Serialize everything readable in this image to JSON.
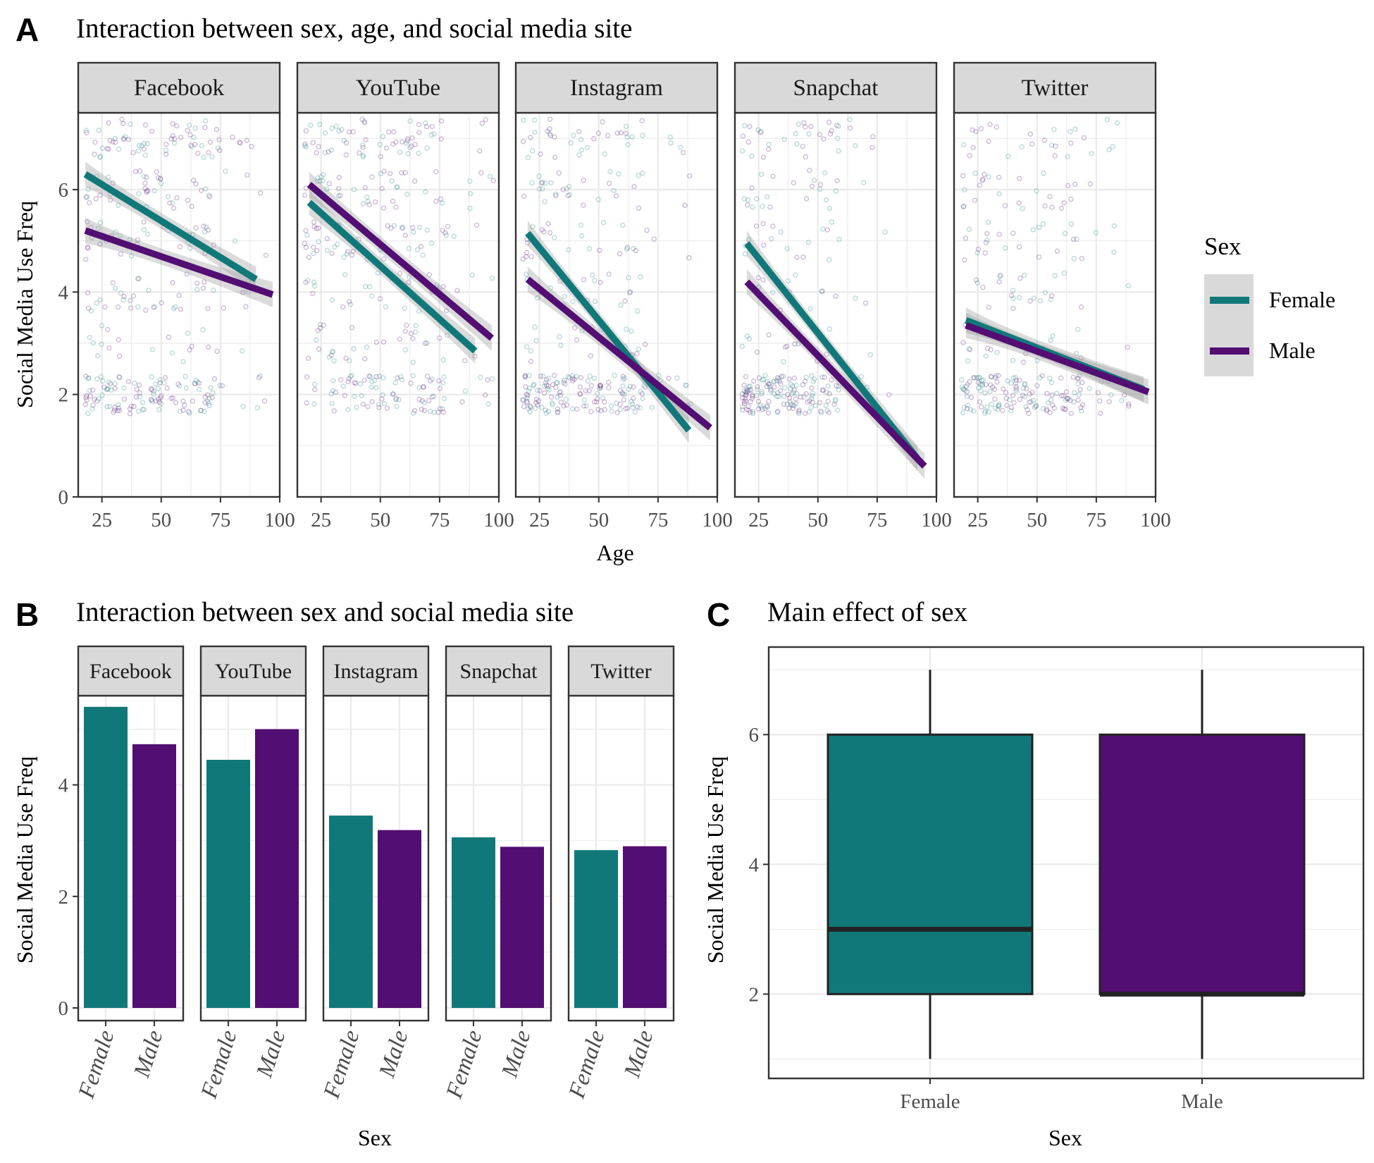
{
  "colors": {
    "female": "#11787A",
    "male": "#520E72",
    "grid": "#EBEBEB",
    "strip": "#D9D9D9",
    "panel_border": "#333333"
  },
  "chart_data": [
    {
      "id": "A",
      "letter": "A",
      "type": "scatter",
      "title": "Interaction between sex, age, and social media site",
      "xlabel": "Age",
      "ylabel": "Social Media Use Freq",
      "xlim": [
        15,
        100
      ],
      "ylim": [
        0,
        7.5
      ],
      "x_ticks": [
        25,
        50,
        75,
        100
      ],
      "y_ticks": [
        0,
        2,
        4,
        6
      ],
      "grid": true,
      "legend": {
        "title": "Sex",
        "position": "right",
        "entries": [
          {
            "label": "Female",
            "color": "#11787A"
          },
          {
            "label": "Male",
            "color": "#520E72"
          }
        ]
      },
      "facets": [
        {
          "name": "Facebook",
          "series": [
            {
              "sex": "Female",
              "x": [
                18,
                90
              ],
              "y": [
                6.3,
                4.25
              ]
            },
            {
              "sex": "Male",
              "x": [
                18,
                97
              ],
              "y": [
                5.2,
                3.95
              ]
            }
          ],
          "density": [
            0.85,
            0.65,
            0.5,
            0.5,
            0.25,
            0.8
          ],
          "age_max": 75
        },
        {
          "name": "YouTube",
          "series": [
            {
              "sex": "Female",
              "x": [
                20,
                90
              ],
              "y": [
                5.75,
                2.85
              ]
            },
            {
              "sex": "Male",
              "x": [
                20,
                97
              ],
              "y": [
                6.1,
                3.1
              ]
            }
          ],
          "density": [
            0.8,
            0.6,
            0.7,
            0.45,
            0.45,
            0.6
          ],
          "age_max": 78
        },
        {
          "name": "Instagram",
          "series": [
            {
              "sex": "Female",
              "x": [
                20,
                88
              ],
              "y": [
                5.15,
                1.3
              ]
            },
            {
              "sex": "Male",
              "x": [
                20,
                97
              ],
              "y": [
                4.25,
                1.35
              ]
            }
          ],
          "density": [
            0.5,
            0.4,
            0.35,
            0.3,
            0.3,
            1.0
          ],
          "age_max": 70
        },
        {
          "name": "Snapchat",
          "series": [
            {
              "sex": "Female",
              "x": [
                20,
                92
              ],
              "y": [
                4.95,
                0.75
              ]
            },
            {
              "sex": "Male",
              "x": [
                20,
                95
              ],
              "y": [
                4.2,
                0.6
              ]
            }
          ],
          "density": [
            0.45,
            0.3,
            0.25,
            0.2,
            0.2,
            1.0
          ],
          "age_max": 60
        },
        {
          "name": "Twitter",
          "series": [
            {
              "sex": "Female",
              "x": [
                20,
                95
              ],
              "y": [
                3.45,
                2.1
              ]
            },
            {
              "sex": "Male",
              "x": [
                20,
                97
              ],
              "y": [
                3.35,
                2.05
              ]
            }
          ],
          "density": [
            0.35,
            0.35,
            0.35,
            0.3,
            0.3,
            1.0
          ],
          "age_max": 70
        }
      ]
    },
    {
      "id": "B",
      "letter": "B",
      "type": "bar",
      "title": "Interaction between sex and social media site",
      "xlabel": "Sex",
      "ylabel": "Social Media Use Freq",
      "ylim": [
        0,
        5.6
      ],
      "y_ticks": [
        0,
        2,
        4
      ],
      "grid": true,
      "categories": [
        "Female",
        "Male"
      ],
      "facets": [
        {
          "name": "Facebook",
          "values": [
            5.4,
            4.73
          ]
        },
        {
          "name": "YouTube",
          "values": [
            4.45,
            5.0
          ]
        },
        {
          "name": "Instagram",
          "values": [
            3.45,
            3.19
          ]
        },
        {
          "name": "Snapchat",
          "values": [
            3.06,
            2.89
          ]
        },
        {
          "name": "Twitter",
          "values": [
            2.83,
            2.9
          ]
        }
      ]
    },
    {
      "id": "C",
      "letter": "C",
      "type": "box",
      "title": "Main effect of sex",
      "xlabel": "Sex",
      "ylabel": "Social Media Use Freq",
      "ylim": [
        0.7,
        7.35
      ],
      "y_ticks": [
        2,
        4,
        6
      ],
      "grid": true,
      "categories": [
        "Female",
        "Male"
      ],
      "boxes": [
        {
          "name": "Female",
          "min": 1,
          "q1": 2,
          "median": 3,
          "q3": 6,
          "max": 7
        },
        {
          "name": "Male",
          "min": 1,
          "q1": 2,
          "median": 2,
          "q3": 6,
          "max": 7
        }
      ]
    }
  ]
}
